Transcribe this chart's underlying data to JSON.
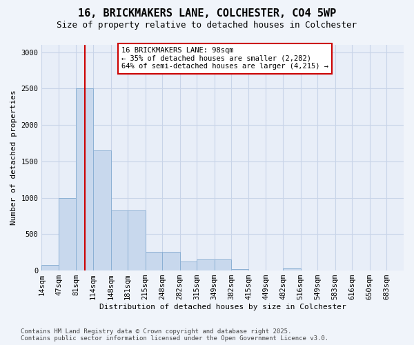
{
  "title": "16, BRICKMAKERS LANE, COLCHESTER, CO4 5WP",
  "subtitle": "Size of property relative to detached houses in Colchester",
  "xlabel": "Distribution of detached houses by size in Colchester",
  "ylabel": "Number of detached properties",
  "footer_line1": "Contains HM Land Registry data © Crown copyright and database right 2025.",
  "footer_line2": "Contains public sector information licensed under the Open Government Licence v3.0.",
  "annotation_line1": "16 BRICKMAKERS LANE: 98sqm",
  "annotation_line2": "← 35% of detached houses are smaller (2,282)",
  "annotation_line3": "64% of semi-detached houses are larger (4,215) →",
  "property_size": 98,
  "bar_edges": [
    14,
    47,
    81,
    114,
    148,
    181,
    215,
    248,
    282,
    315,
    349,
    382,
    415,
    449,
    482,
    516,
    549,
    583,
    616,
    650,
    683
  ],
  "bar_heights": [
    75,
    1000,
    2500,
    1650,
    825,
    825,
    260,
    260,
    120,
    150,
    150,
    20,
    0,
    0,
    30,
    0,
    0,
    0,
    0,
    0
  ],
  "bar_color": "#c8d8ed",
  "bar_edge_color": "#8cb0d4",
  "vline_color": "#cc0000",
  "vline_x": 98,
  "annotation_box_color": "#cc0000",
  "background_color": "#f0f4fa",
  "plot_bg_color": "#e8eef8",
  "grid_color": "#c8d4e8",
  "ylim": [
    0,
    3100
  ],
  "yticks": [
    0,
    500,
    1000,
    1500,
    2000,
    2500,
    3000
  ],
  "title_fontsize": 11,
  "subtitle_fontsize": 9,
  "tick_fontsize": 7.5,
  "ylabel_fontsize": 8
}
